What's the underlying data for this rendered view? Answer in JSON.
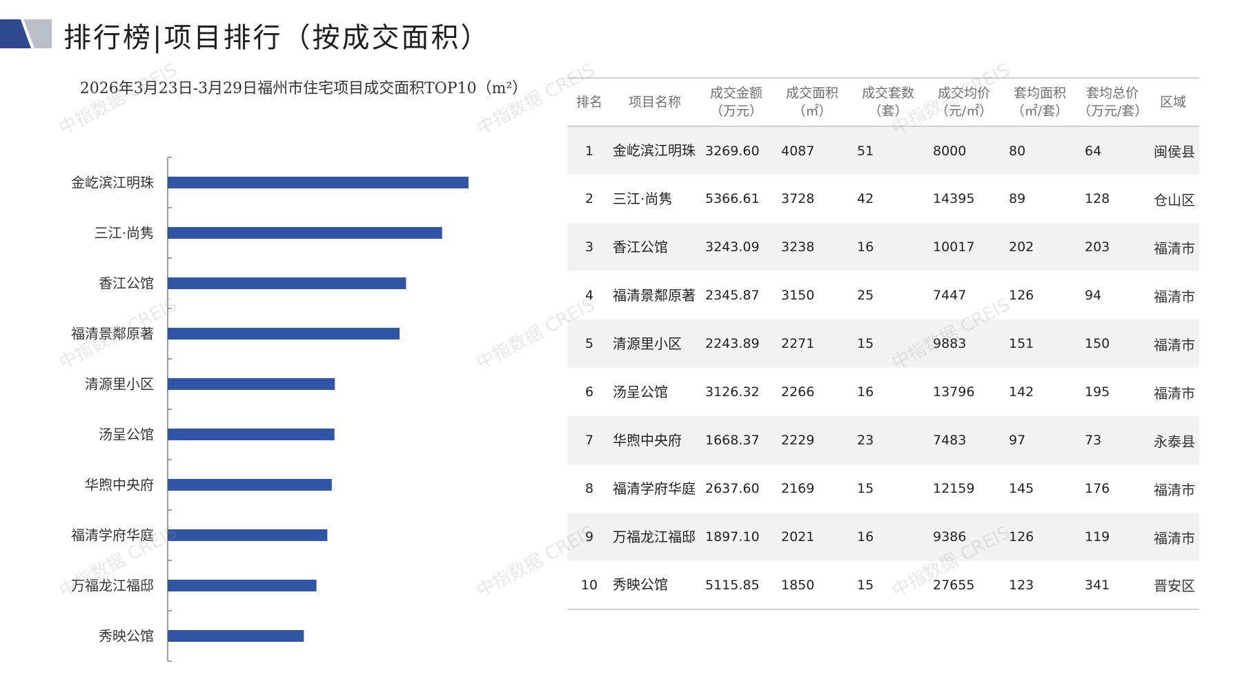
{
  "page_title": "排行榜|项目排行（按成交面积）",
  "watermark_text": "中指数据 CREIS",
  "colors": {
    "bar": "#2f55a4",
    "logo_dark": "#2f4a8c",
    "logo_light": "#b9bec8"
  },
  "chart_data": {
    "type": "bar",
    "orientation": "horizontal",
    "title": "2026年3月23日-3月29日福州市住宅项目成交面积TOP10（m²）",
    "categories": [
      "金屹滨江明珠",
      "三江·尚隽",
      "香江公馆",
      "福清景鄰原著",
      "清源里小区",
      "汤呈公馆",
      "华煦中央府",
      "福清学府华庭",
      "万福龙江福邸",
      "秀映公馆"
    ],
    "values": [
      4087,
      3728,
      3238,
      3150,
      2271,
      2266,
      2229,
      2169,
      2021,
      1850
    ],
    "xlim": [
      0,
      4087
    ],
    "grid": false,
    "legend": "none"
  },
  "table": {
    "headers": [
      "排名",
      "项目名称",
      "成交金额\n（万元）",
      "成交面积\n（㎡）",
      "成交套数\n（套）",
      "成交均价\n（元/㎡）",
      "套均面积\n（㎡/套）",
      "套均总价\n（万元/套）",
      "区域"
    ],
    "rows": [
      [
        "1",
        "金屹滨江明珠",
        "3269.60",
        "4087",
        "51",
        "8000",
        "80",
        "64",
        "闽侯县"
      ],
      [
        "2",
        "三江·尚隽",
        "5366.61",
        "3728",
        "42",
        "14395",
        "89",
        "128",
        "仓山区"
      ],
      [
        "3",
        "香江公馆",
        "3243.09",
        "3238",
        "16",
        "10017",
        "202",
        "203",
        "福清市"
      ],
      [
        "4",
        "福清景鄰原著",
        "2345.87",
        "3150",
        "25",
        "7447",
        "126",
        "94",
        "福清市"
      ],
      [
        "5",
        "清源里小区",
        "2243.89",
        "2271",
        "15",
        "9883",
        "151",
        "150",
        "福清市"
      ],
      [
        "6",
        "汤呈公馆",
        "3126.32",
        "2266",
        "16",
        "13796",
        "142",
        "195",
        "福清市"
      ],
      [
        "7",
        "华煦中央府",
        "1668.37",
        "2229",
        "23",
        "7483",
        "97",
        "73",
        "永泰县"
      ],
      [
        "8",
        "福清学府华庭",
        "2637.60",
        "2169",
        "15",
        "12159",
        "145",
        "176",
        "福清市"
      ],
      [
        "9",
        "万福龙江福邸",
        "1897.10",
        "2021",
        "16",
        "9386",
        "126",
        "119",
        "福清市"
      ],
      [
        "10",
        "秀映公馆",
        "5115.85",
        "1850",
        "15",
        "27655",
        "123",
        "341",
        "晋安区"
      ]
    ]
  }
}
